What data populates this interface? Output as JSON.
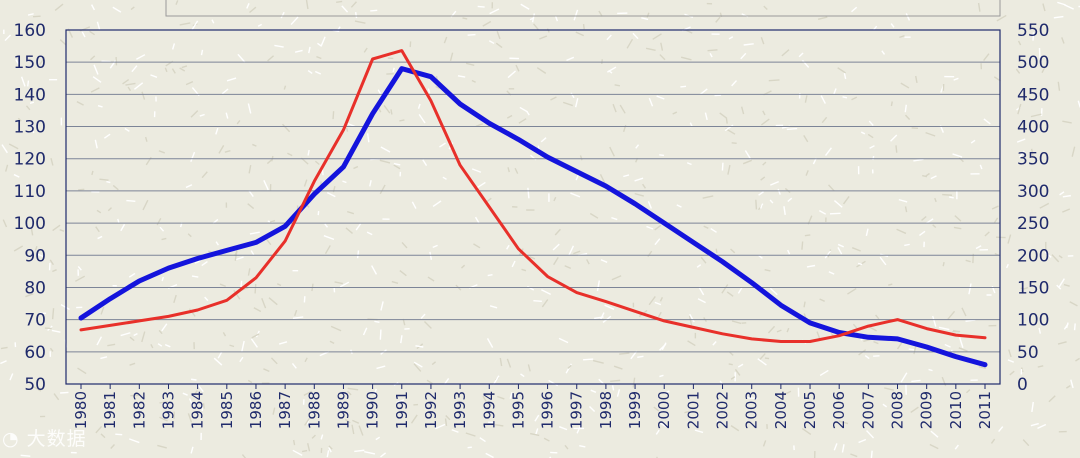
{
  "chart_data": {
    "type": "line",
    "x": [
      "1980",
      "1981",
      "1982",
      "1983",
      "1984",
      "1985",
      "1986",
      "1987",
      "1988",
      "1989",
      "1990",
      "1991",
      "1992",
      "1993",
      "1994",
      "1995",
      "1996",
      "1997",
      "1998",
      "1999",
      "2000",
      "2001",
      "2002",
      "2003",
      "2004",
      "2005",
      "2006",
      "2007",
      "2008",
      "2009",
      "2010",
      "2011"
    ],
    "y_left": {
      "ylim": [
        50,
        160
      ],
      "ticks": [
        50,
        60,
        70,
        80,
        90,
        100,
        110,
        120,
        130,
        140,
        150,
        160
      ]
    },
    "y_right": {
      "ylim": [
        0,
        550
      ],
      "ticks": [
        0,
        50,
        100,
        150,
        200,
        250,
        300,
        350,
        400,
        450,
        500,
        550
      ]
    },
    "grid": true,
    "series": [
      {
        "axis": "left",
        "color": "#1414dc",
        "values": [
          70.5,
          76.5,
          82,
          86,
          89,
          91.5,
          94,
          99,
          109,
          117.5,
          134,
          148,
          145.5,
          137,
          131,
          126,
          120.5,
          116,
          111.5,
          106,
          100,
          94,
          88,
          81.5,
          74.5,
          69,
          66,
          64.5,
          64,
          61.5,
          58.5,
          56
        ]
      },
      {
        "axis": "right",
        "color": "#e8302a",
        "values": [
          84,
          91,
          98,
          105,
          115,
          130,
          165,
          222,
          315,
          395,
          505,
          518,
          440,
          340,
          275,
          210,
          167,
          142,
          128,
          113,
          98,
          88,
          78,
          70,
          66,
          66,
          75,
          90,
          100,
          86,
          76,
          72
        ]
      }
    ]
  },
  "watermark_text": "大数据"
}
